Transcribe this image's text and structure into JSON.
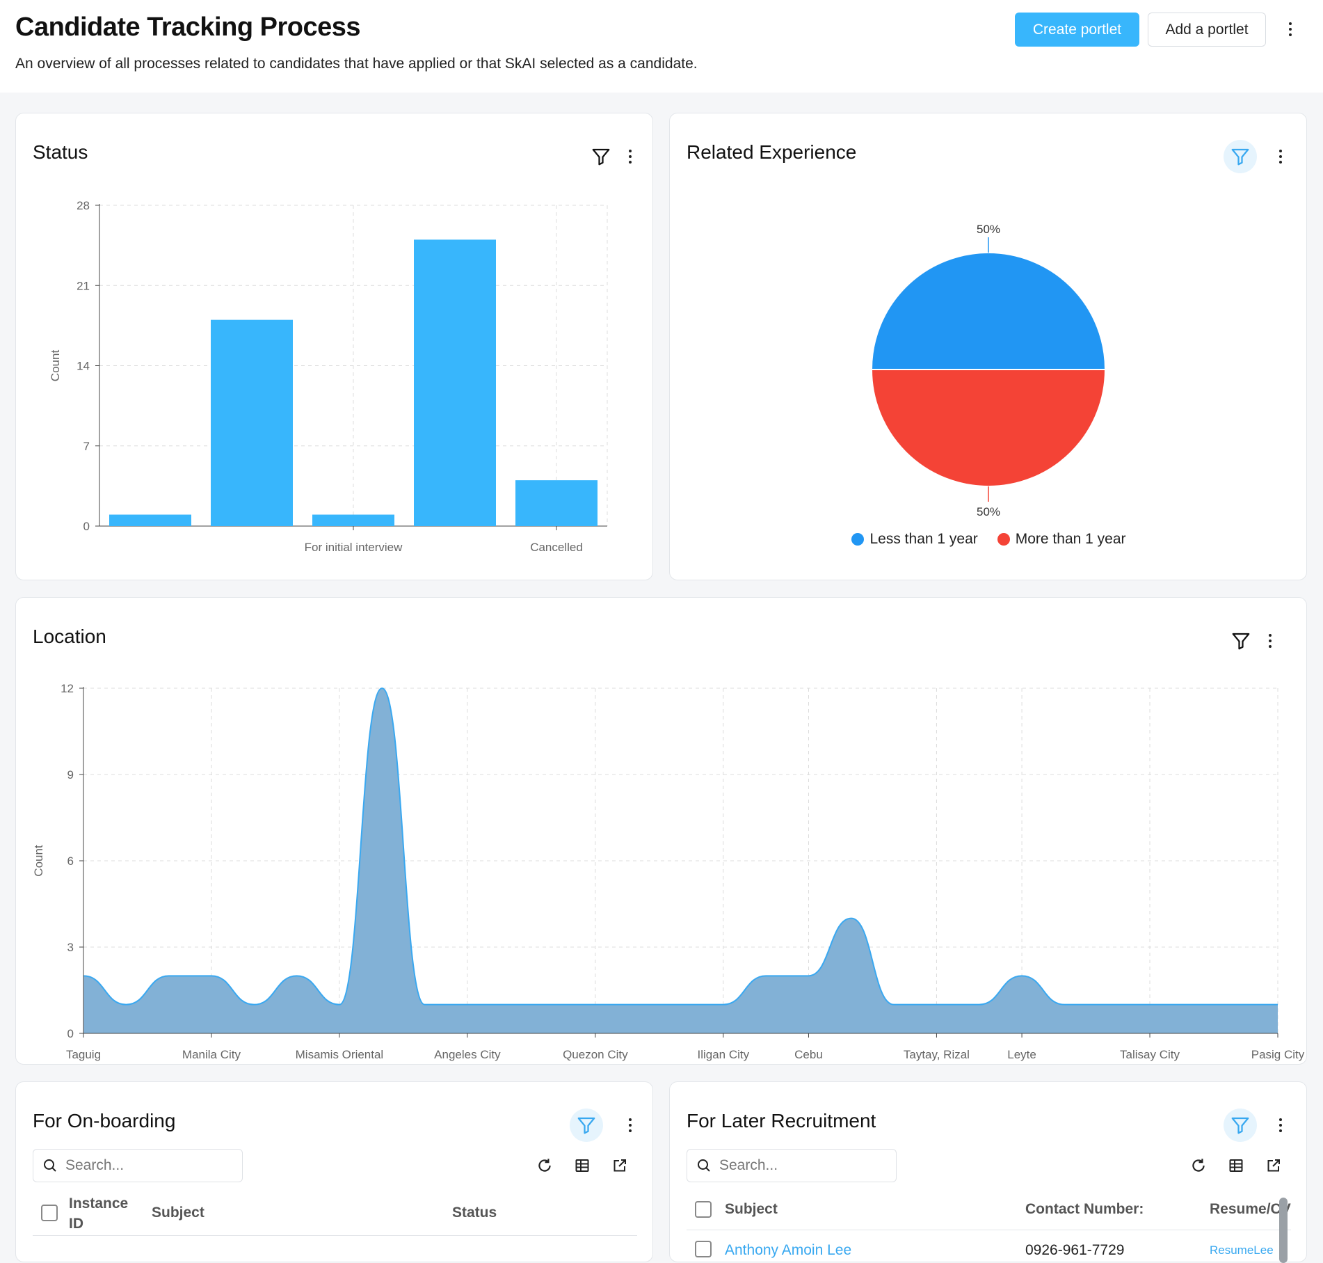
{
  "header": {
    "title": "Candidate Tracking Process",
    "subtitle": "An overview of all processes related to candidates that have applied or that SkAI selected as a candidate.",
    "create_label": "Create portlet",
    "add_label": "Add a portlet"
  },
  "portlets": {
    "status": {
      "title": "Status",
      "chart_data": {
        "type": "bar",
        "categories": [
          "",
          "",
          "For initial interview",
          "",
          "Cancelled"
        ],
        "values": [
          1,
          18,
          1,
          25,
          4
        ],
        "ylabel": "Count",
        "ylim": [
          0,
          28
        ],
        "yticks": [
          0,
          7,
          14,
          21,
          28
        ],
        "grid": true,
        "color": "#38b6fc"
      }
    },
    "experience": {
      "title": "Related Experience",
      "chart_data": {
        "type": "pie",
        "labels": [
          "Less than 1 year",
          "More than 1 year"
        ],
        "values": [
          50,
          50
        ],
        "data_labels": [
          "50%",
          "50%"
        ],
        "colors": [
          "#2196f3",
          "#f44336"
        ],
        "legend": "bottom"
      }
    },
    "location": {
      "title": "Location",
      "chart_data": {
        "type": "area",
        "categories": [
          "Taguig",
          "",
          "",
          "Manila City",
          "",
          "",
          "Misamis Oriental",
          "",
          "",
          "Angeles City",
          "",
          "",
          "Quezon City",
          "",
          "",
          "Iligan City",
          "",
          "Cebu",
          "",
          "",
          "Taytay, Rizal",
          "",
          "Leyte",
          "",
          "",
          "Talisay City",
          "",
          "Pasig City"
        ],
        "x_positions": [
          0,
          0.5,
          1,
          1.5,
          2,
          2.5,
          3,
          3.5,
          4,
          4.5,
          5,
          5.5,
          6,
          6.5,
          7,
          7.5,
          8,
          8.5,
          9,
          9.5,
          10,
          10.5,
          11,
          11.5,
          12,
          12.5,
          13,
          14
        ],
        "values": [
          2,
          1,
          2,
          2,
          1,
          2,
          1,
          12,
          1,
          1,
          1,
          1,
          1,
          1,
          1,
          1,
          2,
          2,
          4,
          1,
          1,
          1,
          2,
          1,
          1,
          1,
          1,
          1
        ],
        "xtick_labels": [
          "Taguig",
          "Manila City",
          "Misamis Oriental",
          "Angeles City",
          "Quezon City",
          "Iligan City",
          "Cebu",
          "Taytay, Rizal",
          "Leyte",
          "Talisay City",
          "Pasig City"
        ],
        "xtick_positions": [
          0,
          1.5,
          3,
          4.5,
          6,
          7.5,
          8.5,
          10,
          11,
          12.5,
          14
        ],
        "ylabel": "Count",
        "ylim": [
          0,
          12
        ],
        "yticks": [
          0,
          3,
          6,
          9,
          12
        ],
        "grid": true,
        "fill": "#82b1d6",
        "stroke": "#3aa8f0"
      }
    },
    "onboarding": {
      "title": "For On-boarding",
      "search_placeholder": "Search...",
      "columns": [
        "Instance ID",
        "Subject",
        "Status"
      ]
    },
    "later": {
      "title": "For Later Recruitment",
      "search_placeholder": "Search...",
      "columns": [
        "Subject",
        "Contact Number:",
        "Resume/CV"
      ],
      "rows": [
        {
          "subject": "Anthony Amoin Lee",
          "contact": "0926-961-7729",
          "resume": "ResumeLee"
        }
      ]
    }
  }
}
